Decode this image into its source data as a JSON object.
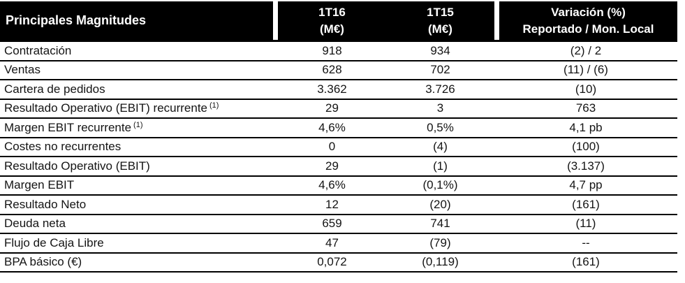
{
  "header": {
    "col1": "Principales Magnitudes",
    "col_1t16": {
      "line1": "1T16",
      "line2": "(M€)"
    },
    "col_1t15": {
      "line1": "1T15",
      "line2": "(M€)"
    },
    "col_var": {
      "line1": "Variación (%)",
      "line2": "Reportado / Mon. Local"
    }
  },
  "table": {
    "rows": [
      {
        "label": "Contratación",
        "sup": "",
        "v1t16": "918",
        "v1t15": "934",
        "variacion": "(2) / 2"
      },
      {
        "label": "Ventas",
        "sup": "",
        "v1t16": "628",
        "v1t15": "702",
        "variacion": "(11) / (6)"
      },
      {
        "label": "Cartera de pedidos",
        "sup": "",
        "v1t16": "3.362",
        "v1t15": "3.726",
        "variacion": "(10)"
      },
      {
        "label": "Resultado Operativo (EBIT) recurrente",
        "sup": "(1)",
        "v1t16": "29",
        "v1t15": "3",
        "variacion": "763"
      },
      {
        "label": "Margen EBIT recurrente",
        "sup": "(1)",
        "v1t16": "4,6%",
        "v1t15": "0,5%",
        "variacion": "4,1 pb"
      },
      {
        "label": "Costes no recurrentes",
        "sup": "",
        "v1t16": "0",
        "v1t15": "(4)",
        "variacion": "(100)"
      },
      {
        "label": "Resultado Operativo (EBIT)",
        "sup": "",
        "v1t16": "29",
        "v1t15": "(1)",
        "variacion": "(3.137)"
      },
      {
        "label": "Margen EBIT",
        "sup": "",
        "v1t16": "4,6%",
        "v1t15": "(0,1%)",
        "variacion": "4,7 pp"
      },
      {
        "label": "Resultado Neto",
        "sup": "",
        "v1t16": "12",
        "v1t15": "(20)",
        "variacion": "(161)"
      },
      {
        "label": "Deuda neta",
        "sup": "",
        "v1t16": "659",
        "v1t15": "741",
        "variacion": "(11)"
      },
      {
        "label": "Flujo de Caja Libre",
        "sup": "",
        "v1t16": "47",
        "v1t15": "(79)",
        "variacion": "--"
      },
      {
        "label": "BPA básico (€)",
        "sup": "",
        "v1t16": "0,072",
        "v1t15": "(0,119)",
        "variacion": "(161)"
      }
    ]
  },
  "colors": {
    "header_bg": "#000000",
    "header_text": "#ffffff",
    "row_text": "#141414",
    "line": "#000000"
  }
}
